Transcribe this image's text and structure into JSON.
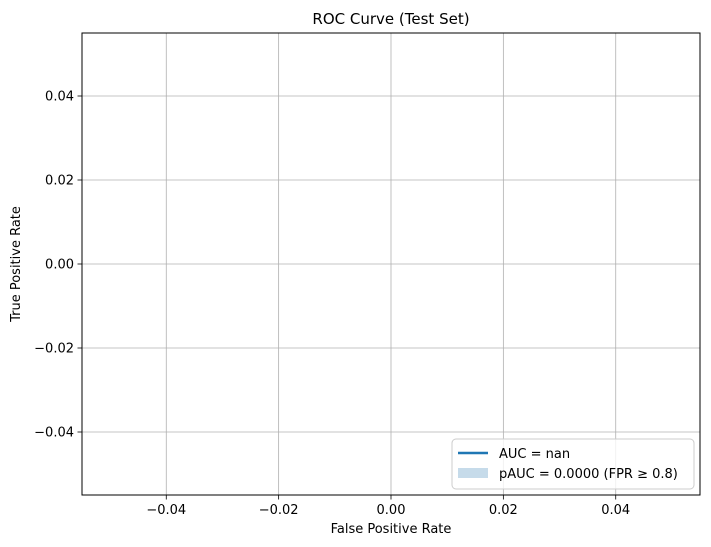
{
  "chart_data": {
    "type": "line",
    "title": "ROC Curve (Test Set)",
    "xlabel": "False Positive Rate",
    "ylabel": "True Positive Rate",
    "xlim": [
      -0.055,
      0.055
    ],
    "ylim": [
      -0.055,
      0.055
    ],
    "grid": true,
    "x_ticks": [
      -0.04,
      -0.02,
      0.0,
      0.02,
      0.04
    ],
    "x_tick_labels": [
      "−0.04",
      "−0.02",
      "0.00",
      "0.02",
      "0.04"
    ],
    "y_ticks": [
      -0.04,
      -0.02,
      0.0,
      0.02,
      0.04
    ],
    "y_tick_labels": [
      "−0.04",
      "−0.02",
      "0.00",
      "0.02",
      "0.04"
    ],
    "legend_placement": "lower-right",
    "series": [
      {
        "name": "AUC = nan",
        "kind": "line",
        "color": "#1f77b4",
        "x": [],
        "y": []
      },
      {
        "name": "pAUC = 0.0000 (FPR ≥ 0.8)",
        "kind": "area",
        "color": "#c6dbea",
        "x": [],
        "y": []
      }
    ]
  }
}
